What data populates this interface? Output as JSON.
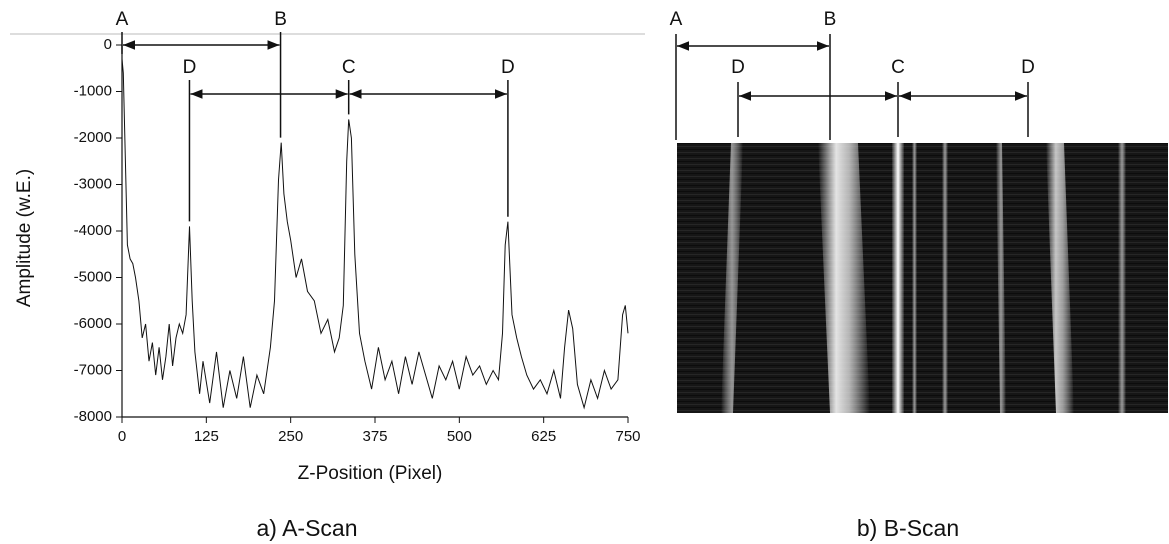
{
  "chart_data": {
    "type": "line",
    "caption": "a) A-Scan",
    "xlabel": "Z-Position (Pixel)",
    "ylabel": "Amplitude (w.E.)",
    "color": "#111111",
    "x": [
      0,
      2,
      5,
      8,
      12,
      16,
      20,
      25,
      30,
      35,
      40,
      45,
      50,
      55,
      60,
      65,
      70,
      75,
      80,
      85,
      90,
      95,
      100,
      104,
      108,
      115,
      120,
      130,
      140,
      150,
      160,
      170,
      180,
      190,
      200,
      210,
      220,
      226,
      232,
      236,
      240,
      245,
      250,
      258,
      266,
      275,
      285,
      295,
      305,
      315,
      322,
      328,
      333,
      336,
      340,
      345,
      352,
      360,
      370,
      380,
      390,
      400,
      410,
      420,
      430,
      440,
      450,
      460,
      470,
      480,
      490,
      500,
      510,
      520,
      530,
      540,
      550,
      558,
      564,
      568,
      572,
      578,
      585,
      592,
      600,
      610,
      620,
      630,
      640,
      650,
      656,
      662,
      668,
      675,
      685,
      695,
      705,
      715,
      725,
      735,
      742,
      746,
      750
    ],
    "values": [
      -300,
      -600,
      -2500,
      -4300,
      -4600,
      -4700,
      -5000,
      -5500,
      -6300,
      -6000,
      -6800,
      -6400,
      -7100,
      -6500,
      -7200,
      -6700,
      -6000,
      -6900,
      -6300,
      -6000,
      -6200,
      -5800,
      -3900,
      -5500,
      -6600,
      -7500,
      -6800,
      -7700,
      -6600,
      -7800,
      -7000,
      -7600,
      -6700,
      -7800,
      -7100,
      -7500,
      -6500,
      -5500,
      -2900,
      -2100,
      -3200,
      -3800,
      -4200,
      -5000,
      -4600,
      -5300,
      -5500,
      -6200,
      -5900,
      -6600,
      -6300,
      -5600,
      -2500,
      -1600,
      -2000,
      -4500,
      -6200,
      -6800,
      -7400,
      -6500,
      -7200,
      -6800,
      -7500,
      -6700,
      -7300,
      -6600,
      -7100,
      -7600,
      -6900,
      -7200,
      -6800,
      -7400,
      -6700,
      -7100,
      -6900,
      -7300,
      -7000,
      -7200,
      -6200,
      -4300,
      -3800,
      -5800,
      -6300,
      -6700,
      -7100,
      -7400,
      -7200,
      -7500,
      -7000,
      -7600,
      -6500,
      -5700,
      -6100,
      -7300,
      -7800,
      -7200,
      -7600,
      -7000,
      -7400,
      -7200,
      -5800,
      -5600,
      -6200
    ],
    "xlim": [
      0,
      750
    ],
    "xticks": [
      0,
      125,
      250,
      375,
      500,
      625,
      750
    ],
    "ylim": [
      -8000,
      0
    ],
    "yticks": [
      0,
      -1000,
      -2000,
      -3000,
      -4000,
      -5000,
      -6000,
      -7000,
      -8000
    ],
    "annotations": [
      {
        "text": "A",
        "x": 0
      },
      {
        "text": "B",
        "x": 235
      },
      {
        "text": "D",
        "x": 100
      },
      {
        "text": "C",
        "x": 336
      },
      {
        "text": "D",
        "x": 572
      }
    ]
  },
  "b_scan": {
    "caption": "b) B-Scan",
    "labels": [
      "A",
      "B",
      "D",
      "C",
      "D"
    ]
  }
}
